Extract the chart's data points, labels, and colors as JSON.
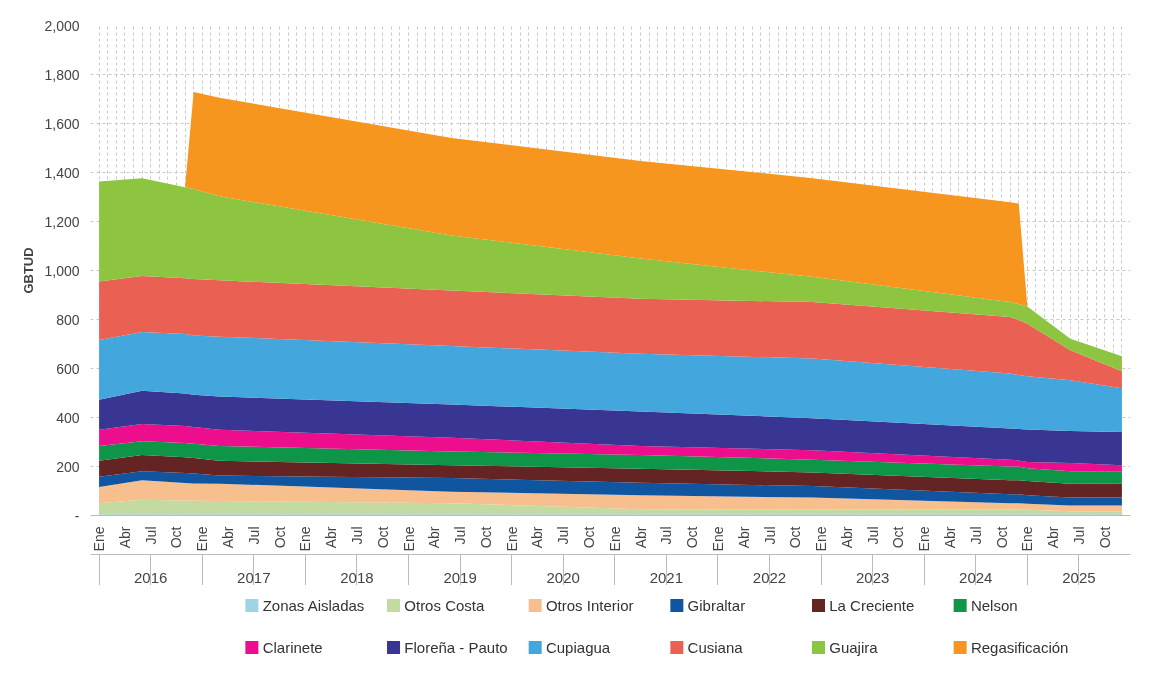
{
  "chart_data": {
    "type": "area",
    "stacked": true,
    "ylabel": "GBTUD",
    "legend": "bottom",
    "grid": true,
    "x": [
      "2016-01",
      "2016-06",
      "2016-11",
      "2016-12",
      "2017-03",
      "2019-06",
      "2021-04",
      "2022-12",
      "2024-11",
      "2024-12",
      "2025-01",
      "2025-06",
      "2025-12"
    ],
    "xlim": [
      "2015-12",
      "2026-01"
    ],
    "ylim": [
      0,
      2000
    ],
    "yticks": [
      {
        "value": 0,
        "label": "-"
      },
      200,
      400,
      600,
      800,
      {
        "value": 1000,
        "label": "1,000"
      },
      {
        "value": 1200,
        "label": "1,200"
      },
      {
        "value": 1400,
        "label": "1,400"
      },
      {
        "value": 1600,
        "label": "1,600"
      },
      {
        "value": 1800,
        "label": "1,800"
      },
      {
        "value": 2000,
        "label": "2,000"
      }
    ],
    "xticks": [
      {
        "value": "2016-01",
        "label": "Ene"
      },
      {
        "value": "2016-02",
        "label": null
      },
      {
        "value": "2016-03",
        "label": null
      },
      {
        "value": "2016-04",
        "label": "Abr"
      },
      {
        "value": "2016-05",
        "label": null
      },
      {
        "value": "2016-06",
        "label": null
      },
      {
        "value": "2016-07",
        "label": "Jul"
      },
      {
        "value": "2016-08",
        "label": null
      },
      {
        "value": "2016-09",
        "label": null
      },
      {
        "value": "2016-10",
        "label": "Oct"
      },
      {
        "value": "2016-11",
        "label": null
      },
      {
        "value": "2016-12",
        "label": null
      },
      {
        "value": "2017-01",
        "label": "Ene"
      },
      {
        "value": "2017-02",
        "label": null
      },
      {
        "value": "2017-03",
        "label": null
      },
      {
        "value": "2017-04",
        "label": "Abr"
      },
      {
        "value": "2017-05",
        "label": null
      },
      {
        "value": "2017-06",
        "label": null
      },
      {
        "value": "2017-07",
        "label": "Jul"
      },
      {
        "value": "2017-08",
        "label": null
      },
      {
        "value": "2017-09",
        "label": null
      },
      {
        "value": "2017-10",
        "label": "Oct"
      },
      {
        "value": "2017-11",
        "label": null
      },
      {
        "value": "2017-12",
        "label": null
      },
      {
        "value": "2018-01",
        "label": "Ene"
      },
      {
        "value": "2018-02",
        "label": null
      },
      {
        "value": "2018-03",
        "label": null
      },
      {
        "value": "2018-04",
        "label": "Abr"
      },
      {
        "value": "2018-05",
        "label": null
      },
      {
        "value": "2018-06",
        "label": null
      },
      {
        "value": "2018-07",
        "label": "Jul"
      },
      {
        "value": "2018-08",
        "label": null
      },
      {
        "value": "2018-09",
        "label": null
      },
      {
        "value": "2018-10",
        "label": "Oct"
      },
      {
        "value": "2018-11",
        "label": null
      },
      {
        "value": "2018-12",
        "label": null
      },
      {
        "value": "2019-01",
        "label": "Ene"
      },
      {
        "value": "2019-02",
        "label": null
      },
      {
        "value": "2019-03",
        "label": null
      },
      {
        "value": "2019-04",
        "label": "Abr"
      },
      {
        "value": "2019-05",
        "label": null
      },
      {
        "value": "2019-06",
        "label": null
      },
      {
        "value": "2019-07",
        "label": "Jul"
      },
      {
        "value": "2019-08",
        "label": null
      },
      {
        "value": "2019-09",
        "label": null
      },
      {
        "value": "2019-10",
        "label": "Oct"
      },
      {
        "value": "2019-11",
        "label": null
      },
      {
        "value": "2019-12",
        "label": null
      },
      {
        "value": "2020-01",
        "label": "Ene"
      },
      {
        "value": "2020-02",
        "label": null
      },
      {
        "value": "2020-03",
        "label": null
      },
      {
        "value": "2020-04",
        "label": "Abr"
      },
      {
        "value": "2020-05",
        "label": null
      },
      {
        "value": "2020-06",
        "label": null
      },
      {
        "value": "2020-07",
        "label": "Jul"
      },
      {
        "value": "2020-08",
        "label": null
      },
      {
        "value": "2020-09",
        "label": null
      },
      {
        "value": "2020-10",
        "label": "Oct"
      },
      {
        "value": "2020-11",
        "label": null
      },
      {
        "value": "2020-12",
        "label": null
      },
      {
        "value": "2021-01",
        "label": "Ene"
      },
      {
        "value": "2021-02",
        "label": null
      },
      {
        "value": "2021-03",
        "label": null
      },
      {
        "value": "2021-04",
        "label": "Abr"
      },
      {
        "value": "2021-05",
        "label": null
      },
      {
        "value": "2021-06",
        "label": null
      },
      {
        "value": "2021-07",
        "label": "Jul"
      },
      {
        "value": "2021-08",
        "label": null
      },
      {
        "value": "2021-09",
        "label": null
      },
      {
        "value": "2021-10",
        "label": "Oct"
      },
      {
        "value": "2021-11",
        "label": null
      },
      {
        "value": "2021-12",
        "label": null
      },
      {
        "value": "2022-01",
        "label": "Ene"
      },
      {
        "value": "2022-02",
        "label": null
      },
      {
        "value": "2022-03",
        "label": null
      },
      {
        "value": "2022-04",
        "label": "Abr"
      },
      {
        "value": "2022-05",
        "label": null
      },
      {
        "value": "2022-06",
        "label": null
      },
      {
        "value": "2022-07",
        "label": "Jul"
      },
      {
        "value": "2022-08",
        "label": null
      },
      {
        "value": "2022-09",
        "label": null
      },
      {
        "value": "2022-10",
        "label": "Oct"
      },
      {
        "value": "2022-11",
        "label": null
      },
      {
        "value": "2022-12",
        "label": null
      },
      {
        "value": "2023-01",
        "label": "Ene"
      },
      {
        "value": "2023-02",
        "label": null
      },
      {
        "value": "2023-03",
        "label": null
      },
      {
        "value": "2023-04",
        "label": "Abr"
      },
      {
        "value": "2023-05",
        "label": null
      },
      {
        "value": "2023-06",
        "label": null
      },
      {
        "value": "2023-07",
        "label": "Jul"
      },
      {
        "value": "2023-08",
        "label": null
      },
      {
        "value": "2023-09",
        "label": null
      },
      {
        "value": "2023-10",
        "label": "Oct"
      },
      {
        "value": "2023-11",
        "label": null
      },
      {
        "value": "2023-12",
        "label": null
      },
      {
        "value": "2024-01",
        "label": "Ene"
      },
      {
        "value": "2024-02",
        "label": null
      },
      {
        "value": "2024-03",
        "label": null
      },
      {
        "value": "2024-04",
        "label": "Abr"
      },
      {
        "value": "2024-05",
        "label": null
      },
      {
        "value": "2024-06",
        "label": null
      },
      {
        "value": "2024-07",
        "label": "Jul"
      },
      {
        "value": "2024-08",
        "label": null
      },
      {
        "value": "2024-09",
        "label": null
      },
      {
        "value": "2024-10",
        "label": "Oct"
      },
      {
        "value": "2024-11",
        "label": null
      },
      {
        "value": "2024-12",
        "label": null
      },
      {
        "value": "2025-01",
        "label": "Ene"
      },
      {
        "value": "2025-02",
        "label": null
      },
      {
        "value": "2025-03",
        "label": null
      },
      {
        "value": "2025-04",
        "label": "Abr"
      },
      {
        "value": "2025-05",
        "label": null
      },
      {
        "value": "2025-06",
        "label": null
      },
      {
        "value": "2025-07",
        "label": "Jul"
      },
      {
        "value": "2025-08",
        "label": null
      },
      {
        "value": "2025-09",
        "label": null
      },
      {
        "value": "2025-10",
        "label": "Oct"
      },
      {
        "value": "2025-11",
        "label": null
      },
      {
        "value": "2025-12",
        "label": null
      }
    ],
    "x2lim": [
      "2015-12",
      "2026-01"
    ],
    "x2ticks": [
      {
        "value": "2016-01",
        "label": null
      },
      {
        "value": "2016-07",
        "label": "2016"
      },
      {
        "value": "2017-01",
        "label": null
      },
      {
        "value": "2017-07",
        "label": "2017"
      },
      {
        "value": "2018-01",
        "label": null
      },
      {
        "value": "2018-07",
        "label": "2018"
      },
      {
        "value": "2019-01",
        "label": null
      },
      {
        "value": "2019-07",
        "label": "2019"
      },
      {
        "value": "2020-01",
        "label": null
      },
      {
        "value": "2020-07",
        "label": "2020"
      },
      {
        "value": "2021-01",
        "label": null
      },
      {
        "value": "2021-07",
        "label": "2021"
      },
      {
        "value": "2022-01",
        "label": null
      },
      {
        "value": "2022-07",
        "label": "2022"
      },
      {
        "value": "2023-01",
        "label": null
      },
      {
        "value": "2023-07",
        "label": "2023"
      },
      {
        "value": "2024-01",
        "label": null
      },
      {
        "value": "2024-07",
        "label": "2024"
      },
      {
        "value": "2025-01",
        "label": null
      },
      {
        "value": "2025-07",
        "label": "2025"
      }
    ],
    "series": [
      {
        "name": "Zonas Aisladas",
        "color": "#9fd3e6",
        "values": [
          5,
          5,
          5,
          5,
          5,
          5,
          5,
          5,
          5,
          5,
          5,
          5,
          5
        ]
      },
      {
        "name": "Otros Costa",
        "color": "#c3dba0",
        "values": [
          45,
          59,
          56,
          55,
          54,
          45,
          21,
          21,
          21,
          21,
          18,
          12,
          12
        ]
      },
      {
        "name": "Otros Interior",
        "color": "#f8bf8e",
        "values": [
          66,
          80,
          72,
          71,
          71,
          47,
          57,
          47,
          24,
          24,
          25,
          24,
          24
        ]
      },
      {
        "name": "Gibraltar",
        "color": "#0f55a0",
        "values": [
          42,
          37,
          40,
          40,
          33,
          56,
          51,
          47,
          37,
          37,
          35,
          32,
          32
        ]
      },
      {
        "name": "La Creciente",
        "color": "#642424",
        "values": [
          65,
          66,
          65,
          64,
          60,
          52,
          57,
          56,
          57,
          57,
          58,
          57,
          57
        ]
      },
      {
        "name": "Nelson",
        "color": "#0e9547",
        "values": [
          61,
          56,
          58,
          58,
          61,
          56,
          56,
          52,
          56,
          56,
          52,
          51,
          51
        ]
      },
      {
        "name": "Clarinete",
        "color": "#ec0e8c",
        "values": [
          66,
          70,
          69,
          68,
          66,
          56,
          37,
          38,
          28,
          25,
          25,
          33,
          24
        ]
      },
      {
        "name": "Floreña - Pauto",
        "color": "#393592",
        "values": [
          122,
          136,
          133,
          132,
          136,
          136,
          141,
          131,
          127,
          128,
          133,
          131,
          136
        ]
      },
      {
        "name": "Cupiagua",
        "color": "#43a6dc",
        "values": [
          244,
          240,
          243,
          242,
          244,
          239,
          235,
          244,
          225,
          220,
          217,
          207,
          178
        ]
      },
      {
        "name": "Cusiana",
        "color": "#ea6153",
        "values": [
          239,
          229,
          227,
          230,
          230,
          226,
          225,
          230,
          230,
          225,
          215,
          122,
          70
        ]
      },
      {
        "name": "Guajira",
        "color": "#8dc541",
        "values": [
          408,
          399,
          372,
          368,
          343,
          225,
          164,
          103,
          61,
          65,
          70,
          47,
          61
        ]
      },
      {
        "name": "Regasificación",
        "color": "#f7961f",
        "values": [
          0,
          0,
          0,
          396,
          402,
          398,
          398,
          403,
          408,
          410,
          0,
          0,
          0
        ]
      }
    ]
  }
}
